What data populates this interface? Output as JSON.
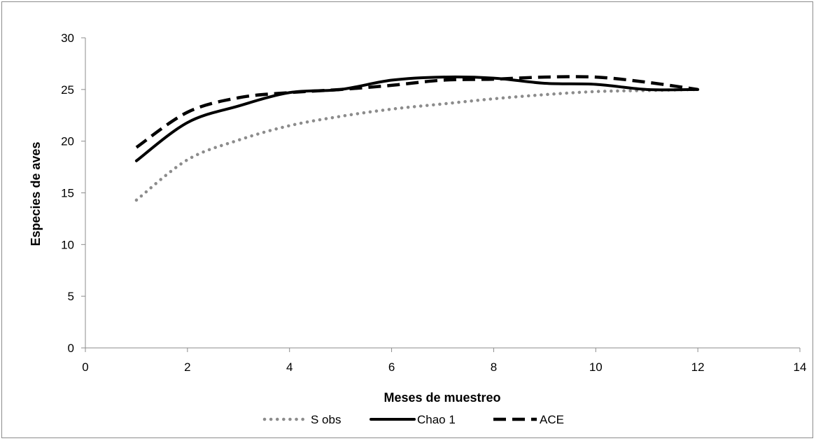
{
  "chart_data": {
    "type": "line",
    "title": "",
    "xlabel": "Meses de muestreo",
    "ylabel": "Especies de aves",
    "xlim": [
      0,
      14
    ],
    "ylim": [
      0,
      30
    ],
    "xticks": [
      0,
      2,
      4,
      6,
      8,
      10,
      12,
      14
    ],
    "yticks": [
      0,
      5,
      10,
      15,
      20,
      25,
      30
    ],
    "grid": false,
    "legend_position": "bottom",
    "series": [
      {
        "name": "S obs",
        "style": "dotted",
        "color": "#8c8c8c",
        "x": [
          1,
          2,
          3,
          4,
          5,
          6,
          7,
          8,
          9,
          10,
          11,
          12
        ],
        "y": [
          14.3,
          18.2,
          20.1,
          21.5,
          22.4,
          23.1,
          23.6,
          24.1,
          24.5,
          24.8,
          24.9,
          25.0
        ]
      },
      {
        "name": "Chao 1",
        "style": "solid",
        "color": "#000000",
        "x": [
          1,
          2,
          3,
          4,
          5,
          6,
          7,
          8,
          9,
          10,
          11,
          12
        ],
        "y": [
          18.1,
          21.8,
          23.4,
          24.7,
          25.0,
          25.9,
          26.2,
          26.1,
          25.6,
          25.5,
          25.0,
          25.0
        ]
      },
      {
        "name": "ACE",
        "style": "dashed",
        "color": "#000000",
        "x": [
          1,
          2,
          3,
          4,
          5,
          6,
          7,
          8,
          9,
          10,
          11,
          12
        ],
        "y": [
          19.4,
          22.8,
          24.2,
          24.7,
          25.0,
          25.4,
          25.9,
          26.0,
          26.2,
          26.2,
          25.7,
          25.0
        ]
      }
    ]
  }
}
